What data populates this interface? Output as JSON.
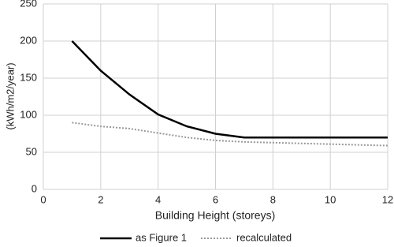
{
  "chart_data": {
    "type": "line",
    "y_label": "(kWh/m2/year)",
    "x_label": "Building Height (storeys)",
    "x": [
      1,
      2,
      3,
      4,
      5,
      6,
      7,
      8,
      9,
      10,
      11,
      12
    ],
    "series": [
      {
        "name": "as Figure 1",
        "color": "#000000",
        "dash": "solid",
        "values": [
          200,
          160,
          128,
          101,
          85,
          75,
          70,
          70,
          70,
          70,
          70,
          70
        ]
      },
      {
        "name": "recalculated",
        "color": "#999999",
        "dash": "dotted",
        "values": [
          90,
          85,
          82,
          76,
          70,
          66,
          64,
          63,
          62,
          61,
          60,
          59
        ]
      }
    ],
    "xlim": [
      0,
      12
    ],
    "xticks": [
      0,
      2,
      4,
      6,
      8,
      10,
      12
    ],
    "ylim": [
      0,
      250
    ],
    "yticks": [
      0,
      50,
      100,
      150,
      200,
      250
    ],
    "grid": true,
    "legend": "bottom"
  }
}
